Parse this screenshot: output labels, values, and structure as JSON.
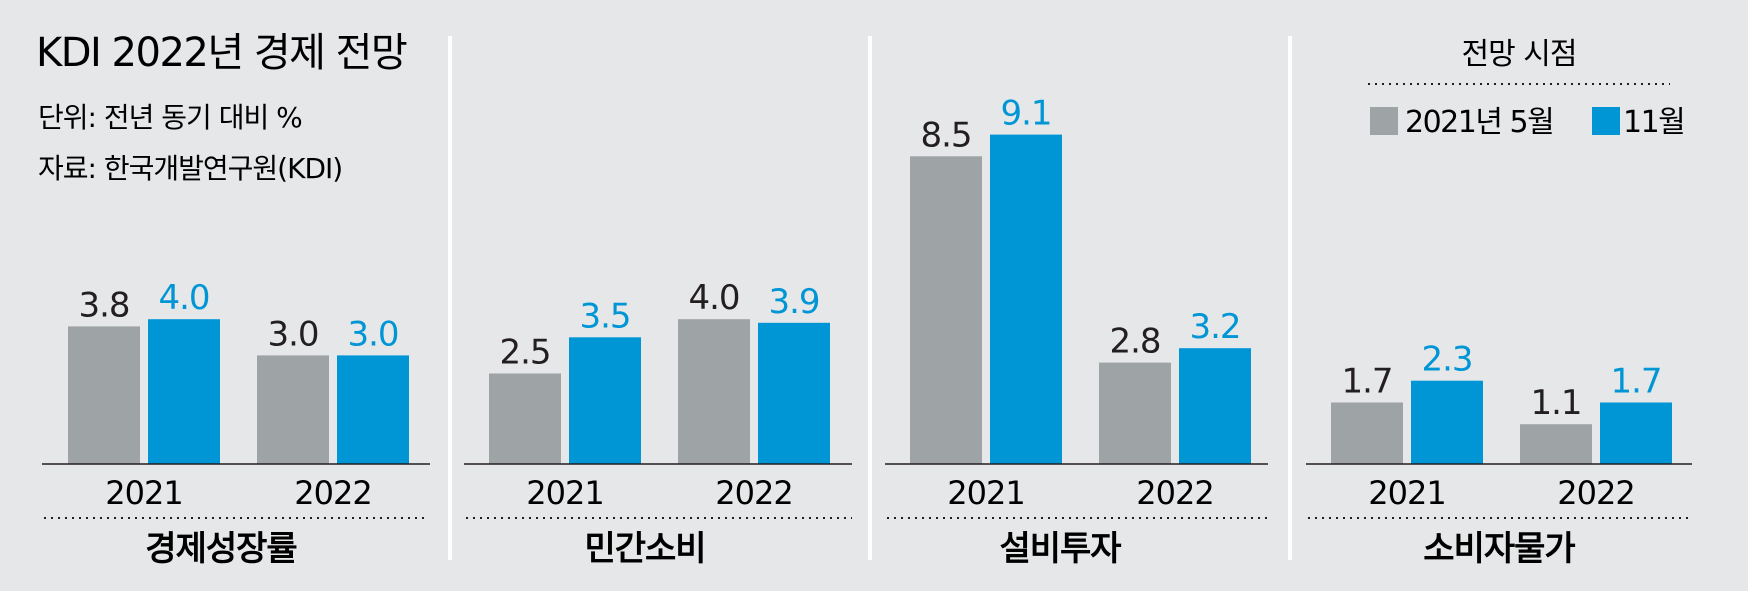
{
  "header": {
    "title": "KDI 2022년 경제 전망",
    "unit": "단위: 전년 동기 대비 %",
    "source": "자료: 한국개발연구원(KDI)"
  },
  "legend": {
    "title": "전망 시점",
    "items": [
      {
        "label": "2021년 5월",
        "color": "#9ea3a6"
      },
      {
        "label": "11월",
        "color": "#0096d6"
      }
    ]
  },
  "chart_data": [
    {
      "type": "bar",
      "title": "경제성장률",
      "categories": [
        "2021",
        "2022"
      ],
      "series": [
        {
          "name": "2021년 5월",
          "values": [
            3.8,
            3.0
          ],
          "color": "#9ea3a6"
        },
        {
          "name": "11월",
          "values": [
            4.0,
            3.0
          ],
          "color": "#0096d6"
        }
      ],
      "ylabel": "전년 동기 대비 %",
      "ylim": [
        0,
        9.1
      ]
    },
    {
      "type": "bar",
      "title": "민간소비",
      "categories": [
        "2021",
        "2022"
      ],
      "series": [
        {
          "name": "2021년 5월",
          "values": [
            2.5,
            4.0
          ],
          "color": "#9ea3a6"
        },
        {
          "name": "11월",
          "values": [
            3.5,
            3.9
          ],
          "color": "#0096d6"
        }
      ],
      "ylabel": "전년 동기 대비 %",
      "ylim": [
        0,
        9.1
      ]
    },
    {
      "type": "bar",
      "title": "설비투자",
      "categories": [
        "2021",
        "2022"
      ],
      "series": [
        {
          "name": "2021년 5월",
          "values": [
            8.5,
            2.8
          ],
          "color": "#9ea3a6"
        },
        {
          "name": "11월",
          "values": [
            9.1,
            3.2
          ],
          "color": "#0096d6"
        }
      ],
      "ylabel": "전년 동기 대비 %",
      "ylim": [
        0,
        9.1
      ]
    },
    {
      "type": "bar",
      "title": "소비자물가",
      "categories": [
        "2021",
        "2022"
      ],
      "series": [
        {
          "name": "2021년 5월",
          "values": [
            1.7,
            1.1
          ],
          "color": "#9ea3a6"
        },
        {
          "name": "11월",
          "values": [
            2.3,
            1.7
          ],
          "color": "#0096d6"
        }
      ],
      "ylabel": "전년 동기 대비 %",
      "ylim": [
        0,
        9.1
      ]
    }
  ]
}
